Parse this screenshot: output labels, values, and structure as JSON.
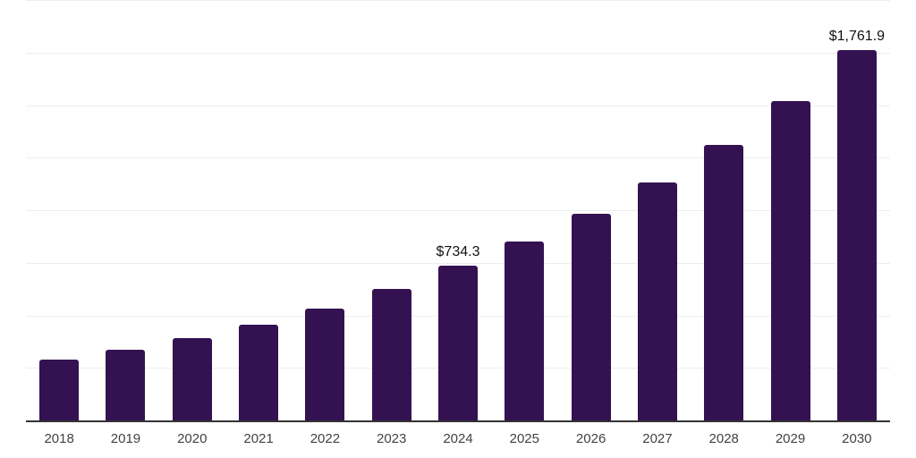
{
  "chart": {
    "title": "",
    "background_color": "#ffffff",
    "bar_color": "#341151",
    "grid_color": "#ededed",
    "axis_color": "#333333",
    "tick_label_color": "#424242",
    "data_label_color": "#111111"
  },
  "chart_data": {
    "type": "bar",
    "categories": [
      "2018",
      "2019",
      "2020",
      "2021",
      "2022",
      "2023",
      "2024",
      "2025",
      "2026",
      "2027",
      "2028",
      "2029",
      "2030"
    ],
    "values": [
      288,
      338,
      390,
      457,
      533,
      626,
      734.3,
      850,
      982,
      1133,
      1311,
      1519,
      1761.9
    ],
    "labeled_points": [
      {
        "index": 6,
        "label": "$734.3"
      },
      {
        "index": 12,
        "label": "$1,761.9"
      }
    ],
    "title": "",
    "xlabel": "",
    "ylabel": "",
    "ylim": [
      0,
      2000
    ],
    "grid": true,
    "gridline_count": 8,
    "legend_position": "none"
  }
}
